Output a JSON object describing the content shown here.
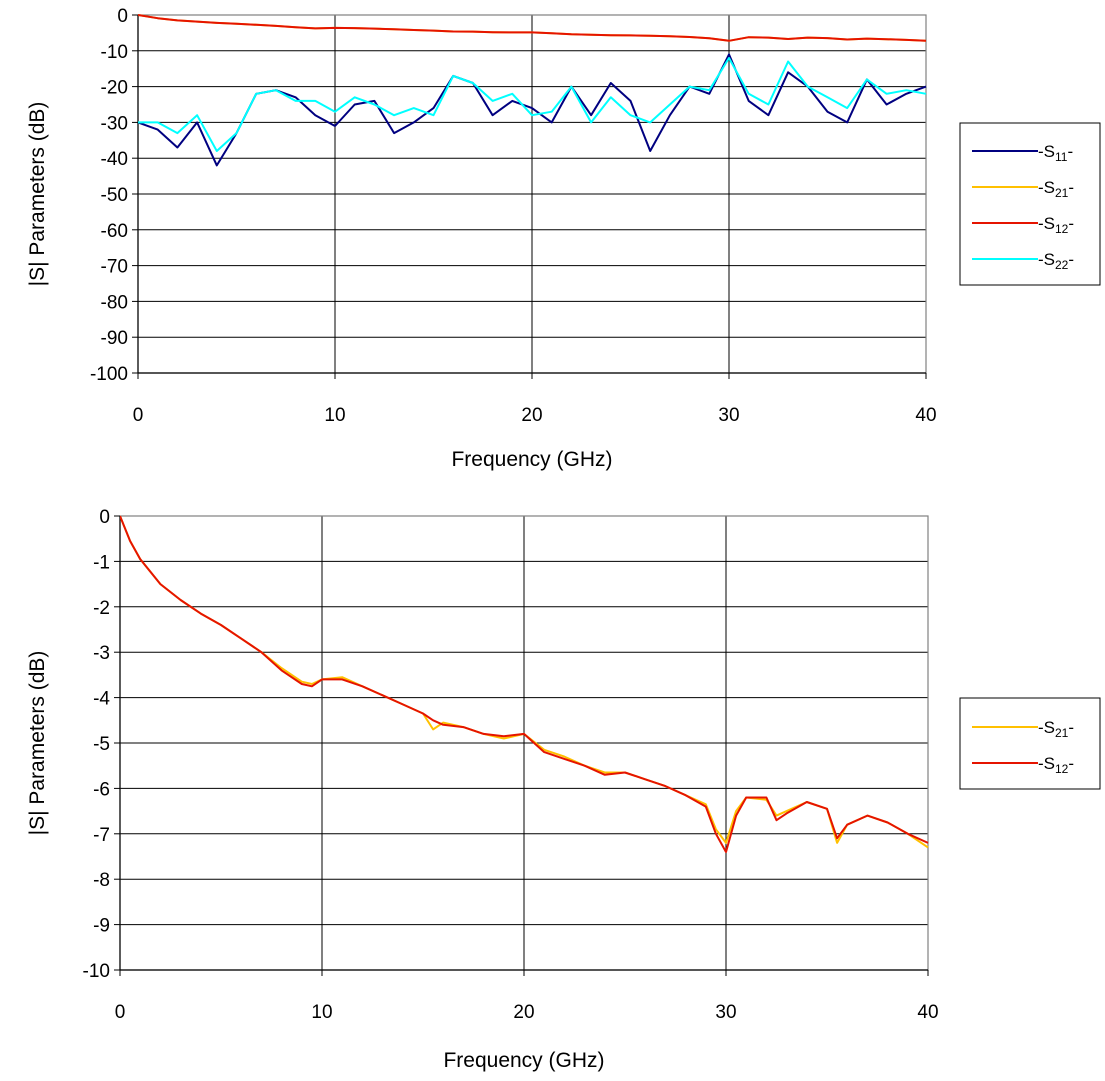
{
  "chart_data": [
    {
      "type": "line",
      "xlabel": "Frequency (GHz)",
      "ylabel": "|S| Parameters (dB)",
      "xlim": [
        0,
        40
      ],
      "ylim": [
        -100,
        0
      ],
      "x_ticks": [
        0,
        10,
        20,
        30,
        40
      ],
      "y_ticks": [
        0,
        -10,
        -20,
        -30,
        -40,
        -50,
        -60,
        -70,
        -80,
        -90,
        -100
      ],
      "x_tick_labels": [
        "0",
        "10",
        "20",
        "30",
        "40"
      ],
      "y_tick_labels": [
        "0",
        "-10",
        "-20",
        "-30",
        "-40",
        "-50",
        "-60",
        "-70",
        "-80",
        "-90",
        "-100"
      ],
      "grid": true,
      "legend_position": "right",
      "x": [
        0,
        1,
        2,
        3,
        4,
        5,
        6,
        7,
        8,
        9,
        10,
        11,
        12,
        13,
        14,
        15,
        16,
        17,
        18,
        19,
        20,
        21,
        22,
        23,
        24,
        25,
        26,
        27,
        28,
        29,
        30,
        31,
        32,
        33,
        34,
        35,
        36,
        37,
        38,
        39,
        40
      ],
      "series": [
        {
          "name": "S11",
          "legend": "-S11-",
          "color": "#000080",
          "values": [
            -30,
            -32,
            -37,
            -30,
            -42,
            -33,
            -22,
            -21,
            -23,
            -28,
            -31,
            -25,
            -24,
            -33,
            -30,
            -26,
            -17,
            -19,
            -28,
            -24,
            -26,
            -30,
            -20,
            -28,
            -19,
            -24,
            -38,
            -28,
            -20,
            -22,
            -11,
            -24,
            -28,
            -16,
            -20,
            -27,
            -30,
            -18,
            -25,
            -22,
            -20
          ]
        },
        {
          "name": "S21",
          "legend": "-S21-",
          "color": "#FFC000",
          "values": [
            0,
            -0.9,
            -1.5,
            -1.85,
            -2.2,
            -2.45,
            -2.75,
            -3.05,
            -3.4,
            -3.75,
            -3.6,
            -3.65,
            -3.8,
            -4.0,
            -4.2,
            -4.35,
            -4.6,
            -4.65,
            -4.8,
            -4.85,
            -4.85,
            -5.1,
            -5.4,
            -5.5,
            -5.65,
            -5.7,
            -5.8,
            -5.95,
            -6.15,
            -6.5,
            -7.2,
            -6.2,
            -6.3,
            -6.7,
            -6.3,
            -6.45,
            -6.85,
            -6.6,
            -6.75,
            -6.95,
            -7.2
          ]
        },
        {
          "name": "S12",
          "legend": "-S12-",
          "color": "#E51400",
          "values": [
            0,
            -0.9,
            -1.5,
            -1.85,
            -2.2,
            -2.45,
            -2.75,
            -3.05,
            -3.4,
            -3.75,
            -3.6,
            -3.65,
            -3.8,
            -4.0,
            -4.2,
            -4.35,
            -4.6,
            -4.65,
            -4.8,
            -4.85,
            -4.85,
            -5.1,
            -5.4,
            -5.5,
            -5.65,
            -5.7,
            -5.8,
            -5.95,
            -6.15,
            -6.5,
            -7.2,
            -6.2,
            -6.3,
            -6.7,
            -6.3,
            -6.45,
            -6.85,
            -6.6,
            -6.75,
            -6.95,
            -7.2
          ]
        },
        {
          "name": "S22",
          "legend": "-S22-",
          "color": "#00FFFF",
          "values": [
            -30,
            -30,
            -33,
            -28,
            -38,
            -33,
            -22,
            -21,
            -24,
            -24,
            -27,
            -23,
            -25,
            -28,
            -26,
            -28,
            -17,
            -19,
            -24,
            -22,
            -28,
            -27,
            -20,
            -30,
            -23,
            -28,
            -30,
            -25,
            -20,
            -21,
            -12,
            -22,
            -25,
            -13,
            -20,
            -23,
            -26,
            -18,
            -22,
            -21,
            -22
          ]
        }
      ]
    },
    {
      "type": "line",
      "xlabel": "Frequency (GHz)",
      "ylabel": "|S| Parameters (dB)",
      "xlim": [
        0,
        40
      ],
      "ylim": [
        -10,
        0
      ],
      "x_ticks": [
        0,
        10,
        20,
        30,
        40
      ],
      "y_ticks": [
        0,
        -1,
        -2,
        -3,
        -4,
        -5,
        -6,
        -7,
        -8,
        -9,
        -10
      ],
      "x_tick_labels": [
        "0",
        "10",
        "20",
        "30",
        "40"
      ],
      "y_tick_labels": [
        "0",
        "-1",
        "-2",
        "-3",
        "-4",
        "-5",
        "-6",
        "-7",
        "-8",
        "-9",
        "-10"
      ],
      "grid": true,
      "legend_position": "right",
      "x": [
        0,
        0.5,
        1,
        2,
        3,
        4,
        5,
        6,
        7,
        8,
        9,
        9.5,
        10,
        11,
        12,
        13,
        14,
        15,
        15.5,
        16,
        17,
        18,
        19,
        20,
        21,
        22,
        23,
        24,
        25,
        26,
        27,
        28,
        29,
        29.5,
        30,
        30.5,
        31,
        32,
        32.5,
        33,
        34,
        35,
        35.5,
        36,
        37,
        38,
        39,
        40
      ],
      "series": [
        {
          "name": "S21",
          "legend": "-S21-",
          "color": "#FFC000",
          "values": [
            0,
            -0.55,
            -0.95,
            -1.5,
            -1.85,
            -2.15,
            -2.4,
            -2.7,
            -3.0,
            -3.35,
            -3.65,
            -3.7,
            -3.6,
            -3.55,
            -3.75,
            -3.95,
            -4.15,
            -4.35,
            -4.7,
            -4.55,
            -4.65,
            -4.8,
            -4.9,
            -4.8,
            -5.15,
            -5.3,
            -5.5,
            -5.65,
            -5.65,
            -5.8,
            -5.95,
            -6.15,
            -6.35,
            -6.9,
            -7.2,
            -6.5,
            -6.2,
            -6.25,
            -6.6,
            -6.5,
            -6.3,
            -6.45,
            -7.2,
            -6.8,
            -6.6,
            -6.75,
            -7.0,
            -7.3
          ]
        },
        {
          "name": "S12",
          "legend": "-S12-",
          "color": "#E51400",
          "values": [
            0,
            -0.55,
            -0.95,
            -1.5,
            -1.85,
            -2.15,
            -2.4,
            -2.7,
            -3.0,
            -3.4,
            -3.7,
            -3.75,
            -3.6,
            -3.6,
            -3.75,
            -3.95,
            -4.15,
            -4.35,
            -4.5,
            -4.6,
            -4.65,
            -4.8,
            -4.85,
            -4.8,
            -5.2,
            -5.35,
            -5.5,
            -5.7,
            -5.65,
            -5.8,
            -5.95,
            -6.15,
            -6.4,
            -7.0,
            -7.4,
            -6.6,
            -6.2,
            -6.2,
            -6.7,
            -6.55,
            -6.3,
            -6.45,
            -7.1,
            -6.8,
            -6.6,
            -6.75,
            -7.0,
            -7.2
          ]
        }
      ]
    }
  ]
}
